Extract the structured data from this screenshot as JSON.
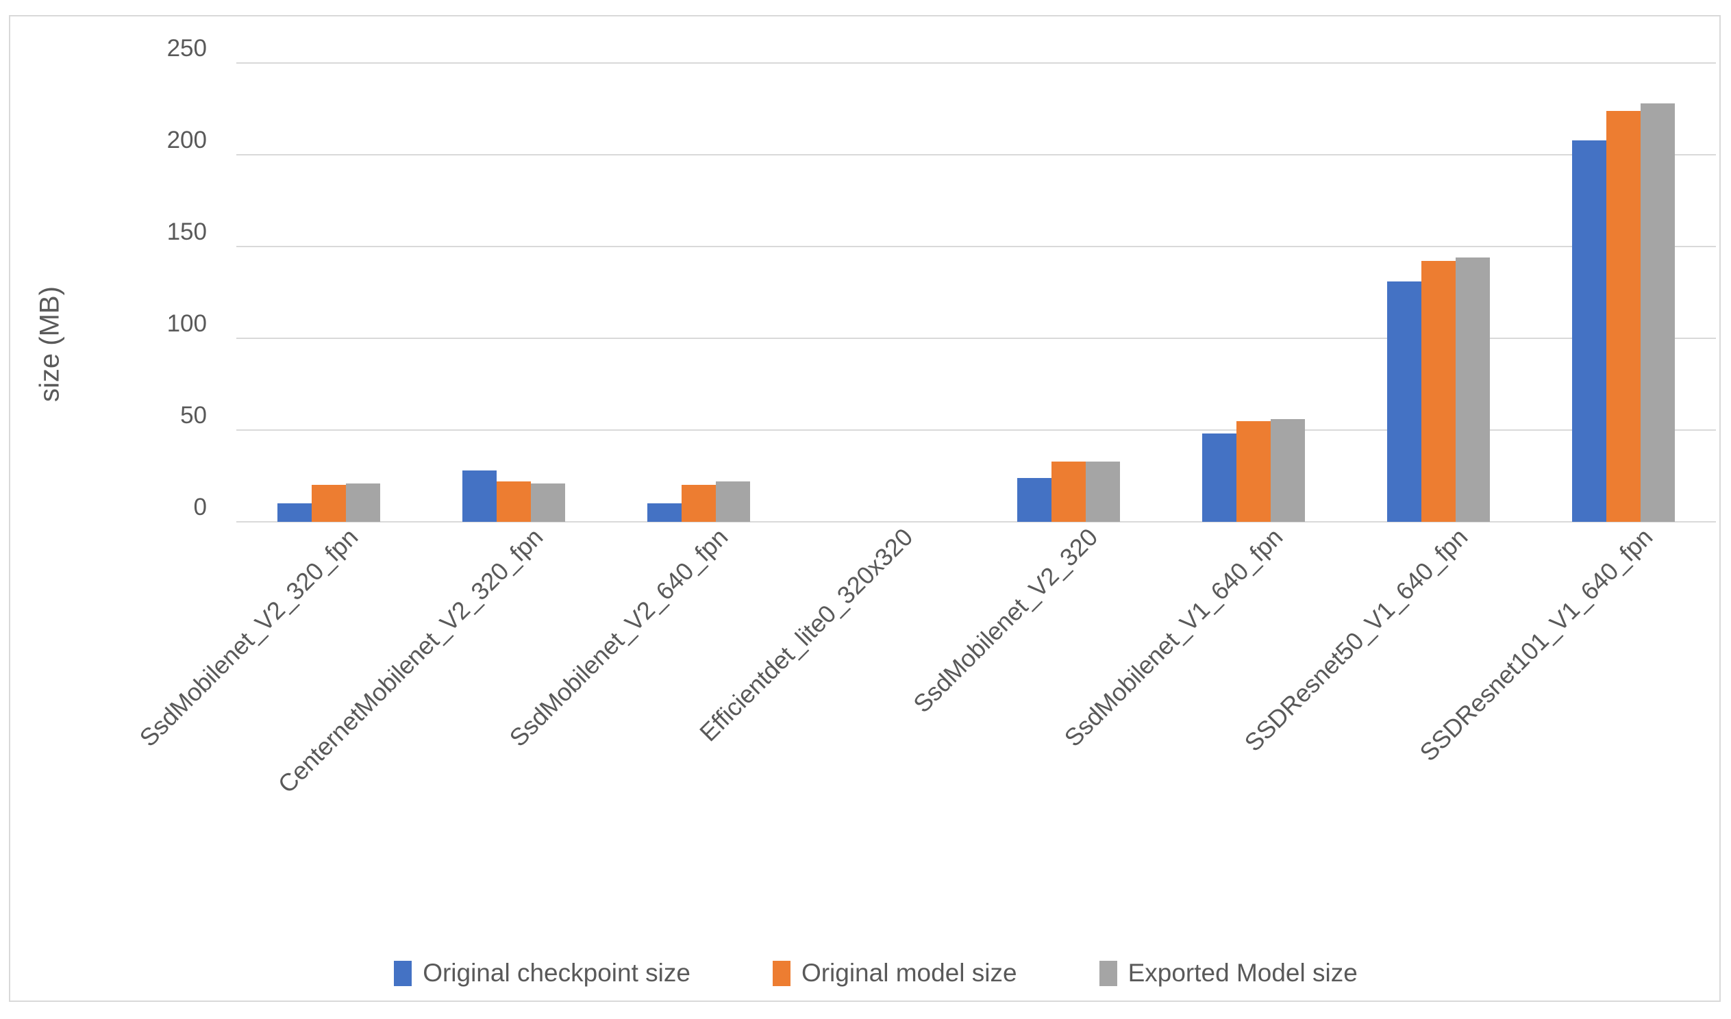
{
  "chart_data": {
    "type": "bar",
    "title": "",
    "xlabel": "",
    "ylabel": "size (MB)",
    "ylim": [
      0,
      250
    ],
    "yticks": [
      0,
      50,
      100,
      150,
      200,
      250
    ],
    "grid": true,
    "legend_position": "bottom",
    "categories": [
      "SsdMobilenet_V2_320_fpn",
      "CenternetMobilenet_V2_320_fpn",
      "SsdMobilenet_V2_640_fpn",
      "Efficientdet_lite0_320x320",
      "SsdMobilenet_V2_320",
      "SsdMobilenet_V1_640_fpn",
      "SSDResnet50_V1_640_fpn",
      "SSDResnet101_V1_640_fpn"
    ],
    "series": [
      {
        "name": "Original checkpoint size",
        "color": "#4472C4",
        "values": [
          10,
          28,
          10,
          0,
          24,
          48,
          131,
          208
        ]
      },
      {
        "name": "Original model size",
        "color": "#ED7D31",
        "values": [
          20,
          22,
          20,
          0,
          33,
          55,
          142,
          224
        ]
      },
      {
        "name": "Exported Model size",
        "color": "#A5A5A5",
        "values": [
          21,
          21,
          22,
          0,
          33,
          56,
          144,
          228
        ]
      }
    ]
  },
  "colors": {
    "axis_text": "#595959",
    "gridline": "#D9D9D9",
    "frame_border": "#D9D9D9",
    "background": "#FFFFFF"
  }
}
